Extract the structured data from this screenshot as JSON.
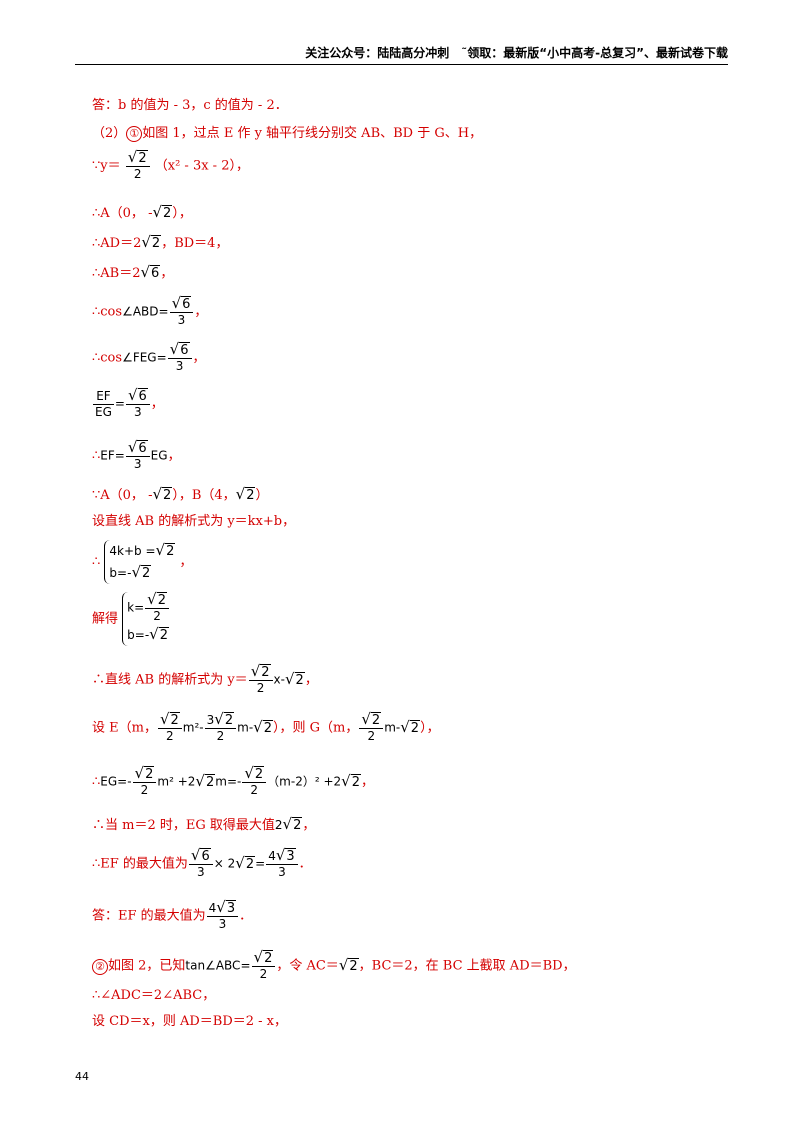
{
  "header": {
    "text": "关注公众号：陆陆高分冲刺　˜领取：最新版“小中高考-总复习”、最新试卷下载"
  },
  "lines": {
    "l1": "答：b 的值为 - 3，c 的值为 - 2．",
    "l2a": "（2）",
    "l2c": "①",
    "l2b": "如图 1，过点 E 作 y 轴平行线分别交 AB、BD 于 G、H，",
    "l3a": "∵y＝",
    "l3b": "（x² - 3x - 2），",
    "l4a": "∴A（0， -",
    "l4b": "），",
    "l5a": "∴AD＝2",
    "l5b": "，BD＝4，",
    "l6a": "∴AB＝2",
    "l6b": "，",
    "l7a": "∴cos",
    "l7m": "∠ABD=",
    "l8a": "∴cos",
    "l8m": "∠FEG=",
    "l9m": "EF",
    "l9d": "EG",
    "l10a": "∴",
    "l10m": "EF=",
    "l10e": "EG",
    "l11a": "∵A（0， -",
    "l11b": "），B（4，",
    "l11c": "）",
    "l12": "设直线 AB 的解析式为 y＝kx+b，",
    "l13a": "∴",
    "l13r1": "4k+b =",
    "l13r2": "b=-",
    "l14a": "解得",
    "l14r1": "k=",
    "l14r2": "b=-",
    "l15a": "∴直线 AB 的解析式为 y＝",
    "l15m": "x-",
    "l16a": "设 E（m，",
    "l16m1": "m²-",
    "l16m2": "m-",
    "l16b": "），则 G（m，",
    "l16m3": "m-",
    "l16c": "），",
    "l17a": "∴",
    "l17m1": "EG=-",
    "l17m2": "m² +2",
    "l17m3": "m=-",
    "l17m4": "（m-2）² +2",
    "l18a": "∴当 m＝2 时，EG 取得最大值",
    "l19a": "∴EF 的最大值为",
    "l19m": "× 2",
    "l20a": "答：EF 的最大值为",
    "l21c": "②",
    "l21a": "如图 2，已知",
    "l21m": "tan∠ABC=",
    "l21b": "，令 AC＝",
    "l21c2": "，BC＝2，在 BC 上截取 AD＝BD，",
    "l22": "∴∠ADC＝2∠ABC，",
    "l23": "设 CD＝x，则 AD＝BD＝2 - x，"
  },
  "math": {
    "r2": "2",
    "r6": "6",
    "r3": "3",
    "d2": "2",
    "d3": "3",
    "n3r2": "3",
    "n4r3": "4",
    "n2": "2",
    "comma": "，",
    "dot": "．"
  },
  "page_number": "44"
}
